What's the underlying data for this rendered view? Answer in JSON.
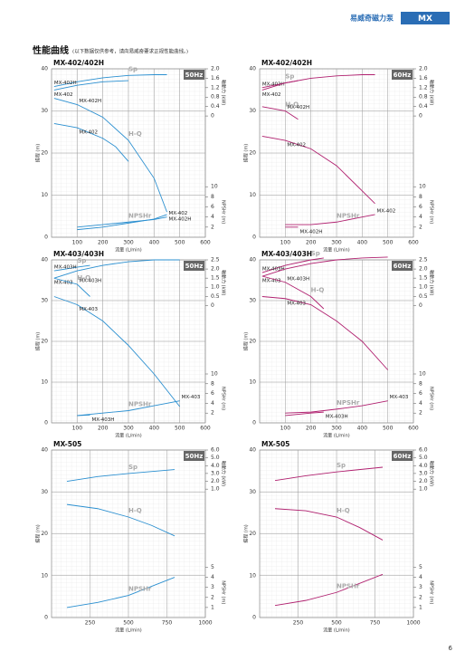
{
  "header": {
    "brand": "易威奇磁力泵",
    "series": "MX"
  },
  "section": {
    "title": "性能曲线",
    "note": "(以下数据仅供参考，请向易威奇要求正规性能曲线。)"
  },
  "page_number": "6",
  "chart_data": [
    {
      "type": "line",
      "title": "MX-402/402H",
      "badge": "50Hz",
      "color": "#2a8fd0",
      "xlabel": "流量 (L/min)",
      "ylabel": "揚程 (m)",
      "y2label": "軸動力 (kW)",
      "y3label": "NPSHr (m)",
      "xlim": [
        0,
        600
      ],
      "xticks": [
        100,
        200,
        300,
        400,
        500,
        600
      ],
      "ylim": [
        0,
        40
      ],
      "yticks": [
        0,
        10,
        20,
        30,
        40
      ],
      "y2lim": [
        0,
        2
      ],
      "y2ticks": [
        0,
        0.4,
        0.8,
        1.2,
        1.6,
        {
          "value": 2,
          "label": "2.0"
        }
      ],
      "y3lim": [
        0,
        10
      ],
      "y3ticks": [
        2,
        4,
        6,
        8,
        10
      ],
      "curves": [
        {
          "name": "Sp",
          "axis": "y2",
          "series": [
            {
              "name": "MX-402H",
              "x": [
                10,
                100,
                200,
                300,
                400,
                450
              ],
              "values": [
                1.25,
                1.45,
                1.62,
                1.72,
                1.75,
                1.75
              ]
            },
            {
              "name": "MX-402",
              "x": [
                10,
                100,
                200,
                300
              ],
              "values": [
                1.1,
                1.3,
                1.45,
                1.5
              ]
            }
          ]
        },
        {
          "name": "H-Q",
          "axis": "y",
          "series": [
            {
              "name": "MX-402H",
              "x": [
                10,
                100,
                200,
                300,
                400,
                450
              ],
              "values": [
                33,
                31.5,
                28.5,
                23,
                14,
                6
              ]
            },
            {
              "name": "MX-402",
              "x": [
                10,
                100,
                200,
                250,
                300
              ],
              "values": [
                27,
                26,
                23.5,
                21.5,
                18
              ]
            }
          ]
        },
        {
          "name": "NPSHr",
          "axis": "y3",
          "series": [
            {
              "name": "MX-402",
              "x": [
                100,
                200,
                300,
                400,
                450
              ],
              "values": [
                2,
                2.5,
                3,
                3.5,
                4
              ]
            },
            {
              "name": "MX-402H",
              "x": [
                100,
                200,
                300,
                400,
                450
              ],
              "values": [
                1.5,
                2,
                2.8,
                3.6,
                4.5
              ]
            }
          ]
        }
      ]
    },
    {
      "type": "line",
      "title": "MX-402/402H",
      "badge": "60Hz",
      "color": "#b0206f",
      "xlabel": "流量 (L/min)",
      "ylabel": "揚程 (m)",
      "y2label": "軸動力 (kW)",
      "y3label": "NPSHr (m)",
      "xlim": [
        0,
        600
      ],
      "xticks": [
        100,
        200,
        300,
        400,
        500,
        600
      ],
      "ylim": [
        0,
        40
      ],
      "yticks": [
        0,
        10,
        20,
        30,
        40
      ],
      "y2lim": [
        0,
        2
      ],
      "y2ticks": [
        0,
        0.4,
        0.8,
        1.2,
        1.6,
        {
          "value": 2,
          "label": "2.0"
        }
      ],
      "y3lim": [
        0,
        10
      ],
      "y3ticks": [
        2,
        4,
        6,
        8,
        10
      ],
      "curves": [
        {
          "name": "Sp",
          "axis": "y2",
          "series": [
            {
              "name": "MX-402H",
              "x": [
                10,
                100,
                150
              ],
              "values": [
                1.2,
                1.4,
                1.5
              ]
            },
            {
              "name": "MX-402",
              "x": [
                10,
                100,
                200,
                300,
                400,
                450
              ],
              "values": [
                1.1,
                1.4,
                1.6,
                1.7,
                1.75,
                1.75
              ]
            }
          ]
        },
        {
          "name": "H-Q",
          "axis": "y",
          "series": [
            {
              "name": "MX-402H",
              "x": [
                10,
                100,
                150
              ],
              "values": [
                31,
                30,
                28
              ]
            },
            {
              "name": "MX-402",
              "x": [
                10,
                100,
                200,
                300,
                400,
                450
              ],
              "values": [
                24,
                23,
                21,
                17,
                11,
                8
              ]
            }
          ]
        },
        {
          "name": "NPSHr",
          "axis": "y3",
          "series": [
            {
              "name": "MX-402",
              "x": [
                100,
                200,
                300,
                400,
                450
              ],
              "values": [
                2.5,
                2.5,
                3,
                4,
                4.5
              ]
            },
            {
              "name": "MX-402H",
              "x": [
                100,
                150
              ],
              "values": [
                2,
                2
              ]
            }
          ]
        }
      ]
    },
    {
      "type": "line",
      "title": "MX-403/403H",
      "badge": "50Hz",
      "color": "#2a8fd0",
      "xlabel": "流量 (L/min)",
      "ylabel": "揚程 (m)",
      "y2label": "軸動力 (kW)",
      "y3label": "NPSHr (m)",
      "xlim": [
        0,
        600
      ],
      "xticks": [
        100,
        200,
        300,
        400,
        500,
        600
      ],
      "ylim": [
        0,
        40
      ],
      "yticks": [
        0,
        10,
        20,
        30,
        40
      ],
      "y2lim": [
        0,
        2.5
      ],
      "y2ticks": [
        0,
        0.5,
        {
          "value": 1,
          "label": "1.0"
        },
        1.5,
        {
          "value": 2,
          "label": "2.0"
        },
        2.5
      ],
      "y3lim": [
        0,
        10
      ],
      "y3ticks": [
        2,
        4,
        6,
        8,
        10
      ],
      "curves": [
        {
          "name": "Sp",
          "axis": "y2",
          "series": [
            {
              "name": "MX-403H",
              "x": [
                10,
                100,
                150
              ],
              "values": [
                1.9,
                2.1,
                2.2
              ]
            },
            {
              "name": "MX-403",
              "x": [
                10,
                100,
                200,
                300,
                400,
                500
              ],
              "values": [
                1.5,
                1.9,
                2.2,
                2.4,
                2.5,
                2.5
              ]
            }
          ]
        },
        {
          "name": "H-Q",
          "axis": "y",
          "series": [
            {
              "name": "MX-403H",
              "x": [
                10,
                100,
                150
              ],
              "values": [
                35.5,
                34,
                31
              ]
            },
            {
              "name": "MX-403",
              "x": [
                10,
                100,
                200,
                300,
                400,
                500
              ],
              "values": [
                31,
                29,
                25,
                19,
                12,
                4
              ]
            }
          ]
        },
        {
          "name": "NPSHr",
          "axis": "y3",
          "series": [
            {
              "name": "MX-403",
              "x": [
                100,
                200,
                300,
                400,
                500
              ],
              "values": [
                1.5,
                2,
                2.5,
                3.5,
                4.5
              ]
            },
            {
              "name": "MX-403H",
              "x": [
                100,
                150
              ],
              "values": [
                1.5,
                1.6
              ]
            }
          ]
        }
      ]
    },
    {
      "type": "line",
      "title": "MX-403/403H",
      "badge": "60Hz",
      "color": "#b0206f",
      "xlabel": "流量 (L/min)",
      "ylabel": "揚程 (m)",
      "y2label": "軸動力 (kW)",
      "y3label": "NPSHr (m)",
      "xlim": [
        0,
        600
      ],
      "xticks": [
        100,
        200,
        300,
        400,
        500,
        600
      ],
      "ylim": [
        0,
        40
      ],
      "yticks": [
        0,
        10,
        20,
        30,
        40
      ],
      "y2lim": [
        0,
        2.5
      ],
      "y2ticks": [
        0,
        0.5,
        {
          "value": 1,
          "label": "1.0"
        },
        1.5,
        {
          "value": 2,
          "label": "2.0"
        },
        2.5
      ],
      "y3lim": [
        0,
        10
      ],
      "y3ticks": [
        2,
        4,
        6,
        8,
        10
      ],
      "curves": [
        {
          "name": "Sp",
          "axis": "y2",
          "series": [
            {
              "name": "MX-403H",
              "x": [
                10,
                100,
                200,
                250
              ],
              "values": [
                1.8,
                2.2,
                2.5,
                2.6
              ]
            },
            {
              "name": "MX-403",
              "x": [
                10,
                100,
                200,
                300,
                400,
                500
              ],
              "values": [
                1.6,
                2,
                2.3,
                2.5,
                2.6,
                2.65
              ]
            }
          ]
        },
        {
          "name": "H-Q",
          "axis": "y",
          "series": [
            {
              "name": "MX-403H",
              "x": [
                10,
                100,
                200,
                250
              ],
              "values": [
                36,
                34.5,
                31,
                28
              ]
            },
            {
              "name": "MX-403",
              "x": [
                10,
                100,
                200,
                300,
                400,
                500
              ],
              "values": [
                31,
                30.5,
                29,
                25,
                20,
                13
              ]
            }
          ]
        },
        {
          "name": "NPSHr",
          "axis": "y3",
          "series": [
            {
              "name": "MX-403",
              "x": [
                100,
                200,
                300,
                400,
                500
              ],
              "values": [
                2,
                2.2,
                2.8,
                3.5,
                4.5
              ]
            },
            {
              "name": "MX-403H",
              "x": [
                100,
                200,
                250
              ],
              "values": [
                1.5,
                2,
                2.2
              ]
            }
          ]
        }
      ]
    },
    {
      "type": "line",
      "title": "MX-505",
      "badge": "50Hz",
      "color": "#2a8fd0",
      "xlabel": "流量 (L/min)",
      "ylabel": "揚程 (m)",
      "y2label": "軸動力 (kW)",
      "y3label": "NPSHr (m)",
      "xlim": [
        0,
        1000
      ],
      "xticks": [
        250,
        500,
        750,
        1000
      ],
      "ylim": [
        0,
        40
      ],
      "yticks": [
        0,
        10,
        20,
        30,
        40
      ],
      "y2lim": [
        0,
        6
      ],
      "y2ticks": [
        {
          "value": 1,
          "label": "1.0"
        },
        {
          "value": 2,
          "label": "2.0"
        },
        {
          "value": 3,
          "label": "3.0"
        },
        {
          "value": 4,
          "label": "4.0"
        },
        {
          "value": 5,
          "label": "5.0"
        },
        {
          "value": 6,
          "label": "6.0"
        }
      ],
      "y3lim": [
        0,
        5
      ],
      "y3ticks": [
        1,
        2,
        3,
        4,
        5
      ],
      "curves": [
        {
          "name": "Sp",
          "axis": "y2",
          "series": [
            {
              "x": [
                100,
                300,
                500,
                800
              ],
              "values": [
                2,
                2.6,
                3,
                3.5
              ]
            }
          ]
        },
        {
          "name": "H-Q",
          "axis": "y",
          "series": [
            {
              "x": [
                100,
                300,
                500,
                650,
                800
              ],
              "values": [
                27,
                26,
                24,
                22,
                19.5
              ]
            }
          ]
        },
        {
          "name": "NPSHr",
          "axis": "y3",
          "series": [
            {
              "x": [
                100,
                300,
                500,
                800
              ],
              "values": [
                1,
                1.5,
                2.2,
                4
              ]
            }
          ]
        }
      ]
    },
    {
      "type": "line",
      "title": "MX-505",
      "badge": "60Hz",
      "color": "#b0206f",
      "xlabel": "流量 (L/min)",
      "ylabel": "揚程 (m)",
      "y2label": "軸動力 (kW)",
      "y3label": "NPSHr (m)",
      "xlim": [
        0,
        1000
      ],
      "xticks": [
        250,
        500,
        750,
        1000
      ],
      "ylim": [
        0,
        40
      ],
      "yticks": [
        0,
        10,
        20,
        30,
        40
      ],
      "y2lim": [
        0,
        6
      ],
      "y2ticks": [
        {
          "value": 1,
          "label": "1.0"
        },
        {
          "value": 2,
          "label": "2.0"
        },
        {
          "value": 3,
          "label": "3.0"
        },
        {
          "value": 4,
          "label": "4.0"
        },
        {
          "value": 5,
          "label": "5.0"
        },
        {
          "value": 6,
          "label": "6.0"
        }
      ],
      "y3lim": [
        0,
        5
      ],
      "y3ticks": [
        1,
        2,
        3,
        4,
        5
      ],
      "curves": [
        {
          "name": "Sp",
          "axis": "y2",
          "series": [
            {
              "x": [
                100,
                300,
                500,
                800
              ],
              "values": [
                2.1,
                2.7,
                3.2,
                3.8
              ]
            }
          ]
        },
        {
          "name": "H-Q",
          "axis": "y",
          "series": [
            {
              "x": [
                100,
                300,
                500,
                650,
                800
              ],
              "values": [
                26,
                25.5,
                24,
                21.5,
                18.5
              ]
            }
          ]
        },
        {
          "name": "NPSHr",
          "axis": "y3",
          "series": [
            {
              "x": [
                100,
                300,
                500,
                800
              ],
              "values": [
                1.2,
                1.7,
                2.5,
                4.3
              ]
            }
          ]
        }
      ]
    }
  ]
}
